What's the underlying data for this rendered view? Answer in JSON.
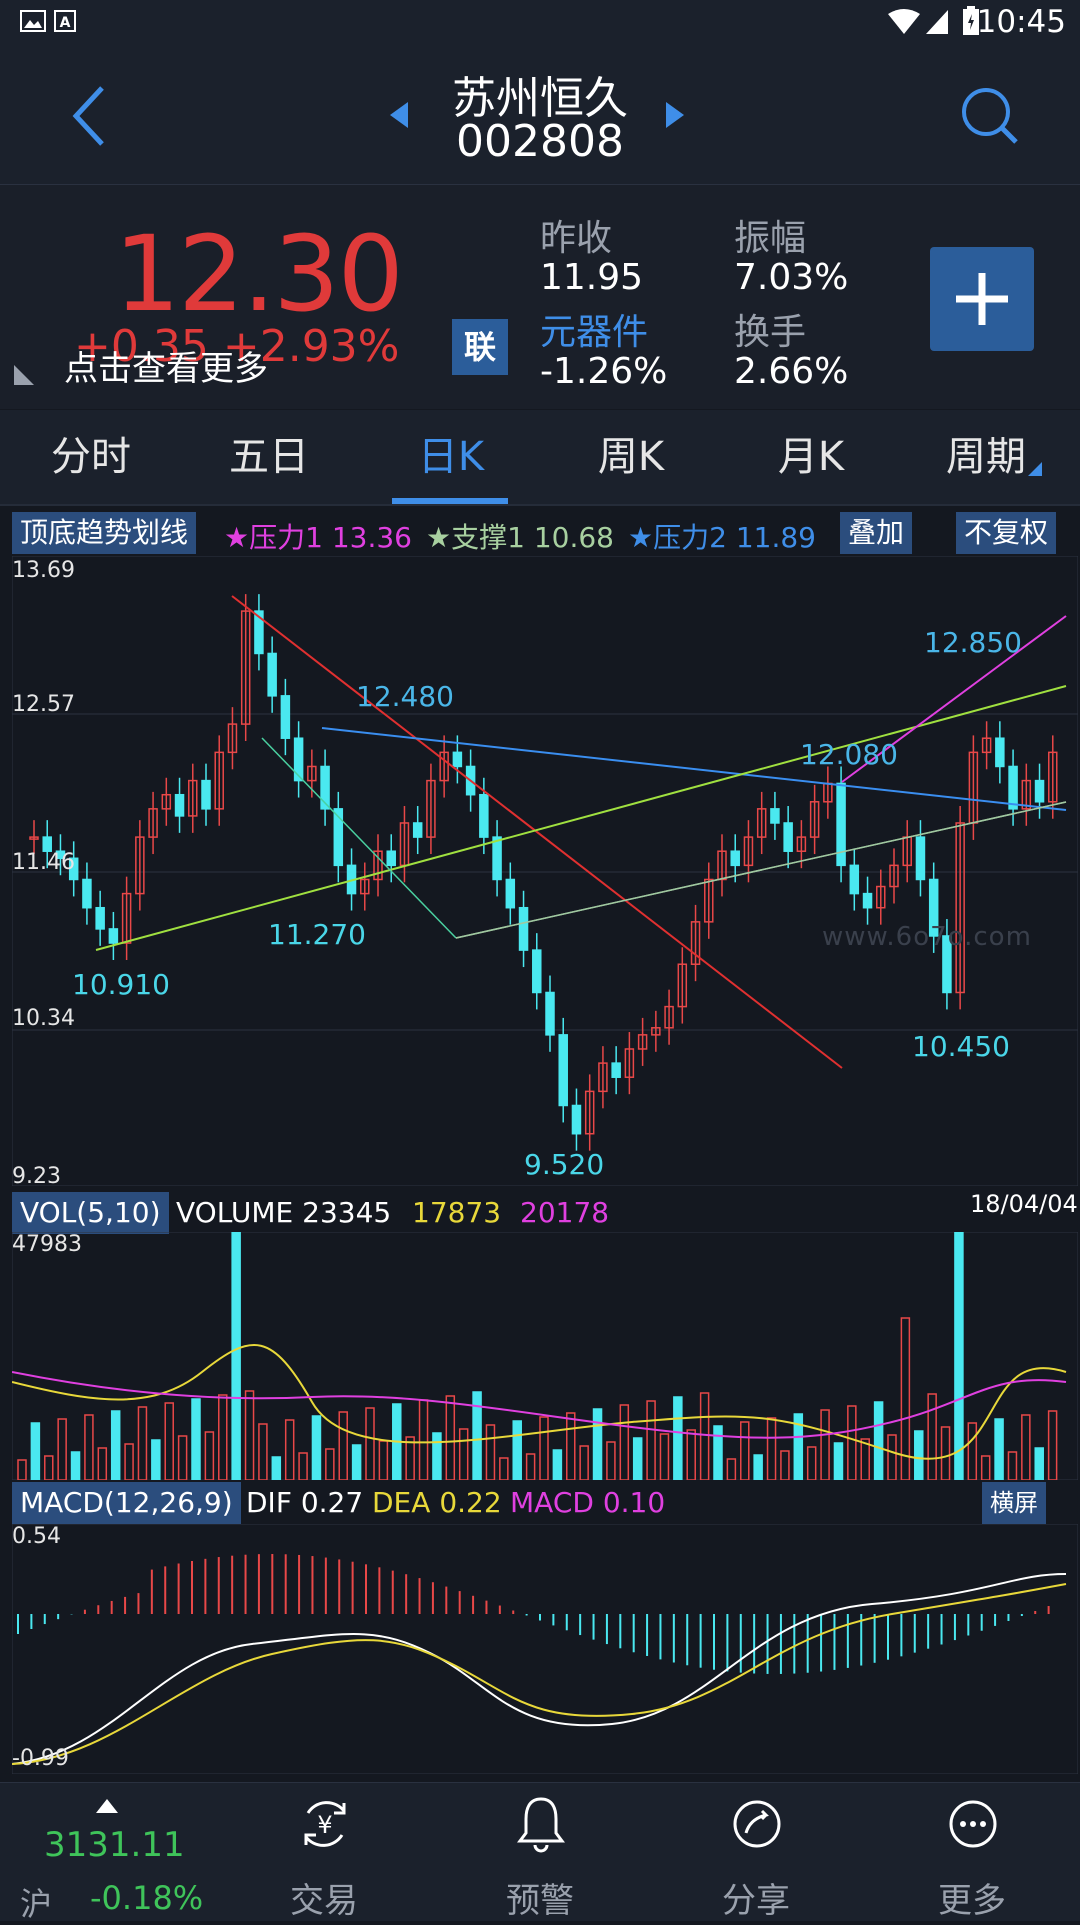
{
  "status_bar": {
    "time": "10:45",
    "icons": [
      "image-icon",
      "font-icon",
      "wifi-icon",
      "signal-icon",
      "battery-icon"
    ]
  },
  "header": {
    "title": "苏州恒久",
    "code": "002808"
  },
  "quote": {
    "price": "12.30",
    "change": "+0.35",
    "change_pct": "+2.93%",
    "more_hint": "点击查看更多",
    "lian_label": "联",
    "prev_close_label": "昨收",
    "prev_close": "11.95",
    "sector_label": "元器件",
    "sector_change": "-1.26%",
    "amplitude_label": "振幅",
    "amplitude": "7.03%",
    "turnover_label": "换手",
    "turnover": "2.66%",
    "colors": {
      "up": "#e03a3a",
      "accent": "#3f8ee8"
    }
  },
  "tabs": [
    {
      "label": "分时"
    },
    {
      "label": "五日"
    },
    {
      "label": "日K"
    },
    {
      "label": "周K"
    },
    {
      "label": "月K"
    },
    {
      "label": "周期"
    }
  ],
  "indicator_strip": {
    "line_tool": "顶底趋势划线",
    "pressure1_label": "★压力1",
    "pressure1": "13.36",
    "support1_label": "★支撑1",
    "support1": "10.68",
    "pressure2_label": "★压力2",
    "pressure2": "11.89",
    "overlay": "叠加",
    "no_adjust": "不复权"
  },
  "main_chart": {
    "y_ticks": [
      "13.69",
      "12.57",
      "11.46",
      "10.34",
      "9.23"
    ],
    "watermark": "www.6o7o.com",
    "annotations": [
      {
        "label": "12.480",
        "price": 12.48
      },
      {
        "label": "12.080",
        "price": 12.08
      },
      {
        "label": "12.850",
        "price": 12.85
      },
      {
        "label": "11.270",
        "price": 11.27
      },
      {
        "label": "10.910",
        "price": 10.91
      },
      {
        "label": "10.450",
        "price": 10.45
      },
      {
        "label": "9.520",
        "price": 9.52
      }
    ]
  },
  "volume": {
    "label": "VOL(5,10)",
    "volume_label": "VOLUME",
    "volume": "23345",
    "ma5": "17873",
    "ma10": "20178",
    "date": "18/04/04",
    "y_max": "47983"
  },
  "macd": {
    "label": "MACD(12,26,9)",
    "dif_label": "DIF",
    "dif": "0.27",
    "dea_label": "DEA",
    "dea": "0.22",
    "macd_label": "MACD",
    "macd": "0.10",
    "landscape": "横屏",
    "y_max": "0.54",
    "y_min": "-0.99"
  },
  "bottom_nav": {
    "index_value": "3131.11",
    "index_name": "沪",
    "index_change": "-0.18%",
    "items": [
      {
        "label": "交易"
      },
      {
        "label": "预警"
      },
      {
        "label": "分享"
      },
      {
        "label": "更多"
      }
    ]
  }
}
